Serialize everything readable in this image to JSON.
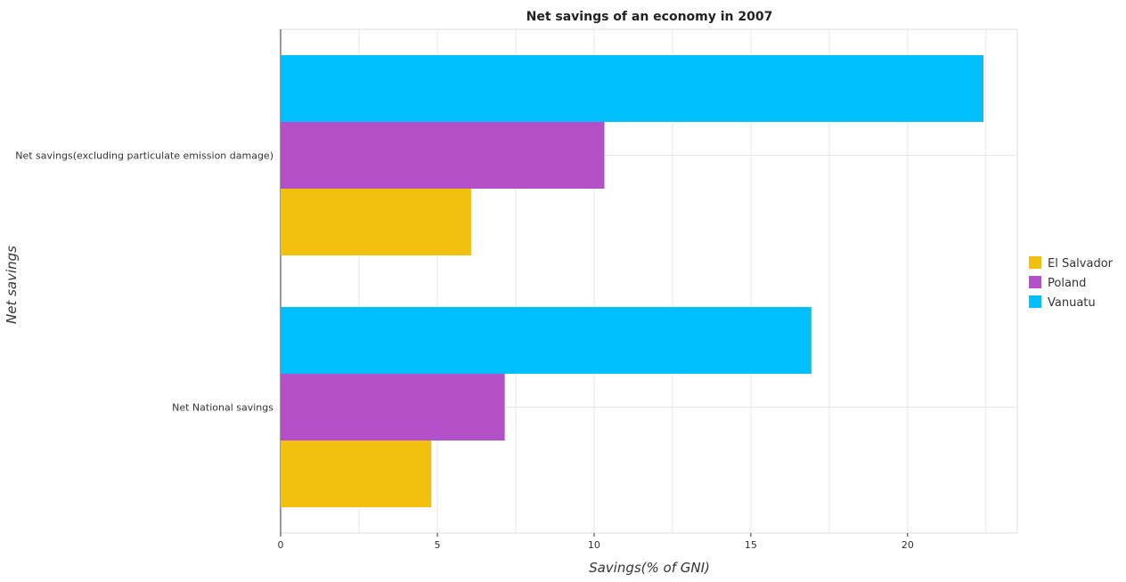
{
  "chart_data": {
    "type": "bar",
    "orientation": "horizontal",
    "title": "Net savings of an economy in 2007",
    "xlabel": "Savings(% of GNI)",
    "ylabel": "Net savings",
    "categories": [
      "Net savings(excluding particulate emission damage)",
      "Net National savings"
    ],
    "xlim": [
      0,
      23.5
    ],
    "xticks": [
      0,
      5,
      10,
      15,
      20
    ],
    "grid": true,
    "legend_position": "right",
    "series": [
      {
        "name": "El Salvador",
        "color": "#f2c10f",
        "values": [
          6.08,
          4.81
        ]
      },
      {
        "name": "Poland",
        "color": "#b450c8",
        "values": [
          10.33,
          7.15
        ]
      },
      {
        "name": "Vanuatu",
        "color": "#00bfff",
        "values": [
          22.42,
          16.93
        ]
      }
    ]
  }
}
